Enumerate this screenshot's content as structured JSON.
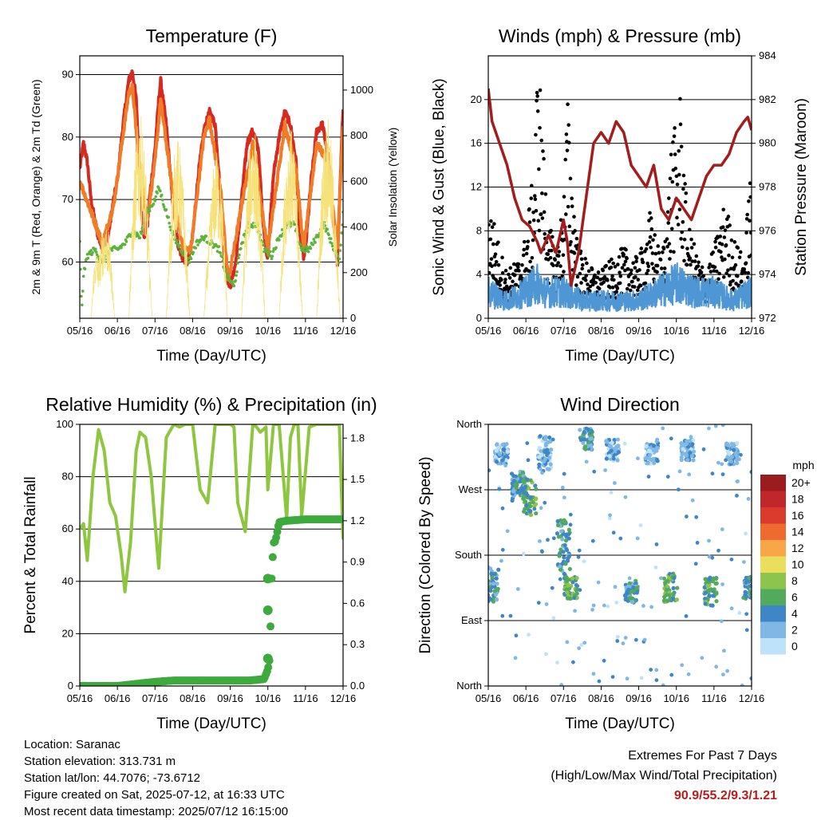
{
  "footer": {
    "location": "Location: Saranac",
    "elevation": "Station elevation: 313.731 m",
    "latlon": "Station lat/lon: 44.7076; -73.6712",
    "created": "Figure created on Sat, 2025-07-12, at 16:33 UTC",
    "latest": "Most recent data timestamp: 2025/07/12 16:15:00",
    "extremes_title": "Extremes For Past 7 Days",
    "extremes_subtitle": "(High/Low/Max Wind/Total Precipitation)",
    "extremes_values": "90.9/55.2/9.3/1.21"
  },
  "colors": {
    "temp2m": "#d42a20",
    "temp9m": "#f07c27",
    "dewpoint": "#5bb33a",
    "solar": "#f6e27a",
    "gust": "#000000",
    "wind": "#4f97d4",
    "pressure": "#a41d1d",
    "rh": "#8ec63f",
    "rain": "#3caa3c"
  },
  "chart_data": [
    {
      "type": "line",
      "title": "Temperature (F)",
      "xlabel": "Time (Day/UTC)",
      "ylabel": "2m & 9m T (Red, Orange) & 2m Td (Green)",
      "ylabel_right": "Solar Insolation (Yellow)",
      "x_ticks": [
        "05/16",
        "06/16",
        "07/16",
        "08/16",
        "09/16",
        "10/16",
        "11/16",
        "12/16"
      ],
      "xlim": [
        0,
        7
      ],
      "ylim": [
        51,
        93
      ],
      "y_ticks": [
        60,
        70,
        80,
        90
      ],
      "ylim_right": [
        0,
        1150
      ],
      "y_ticks_right": [
        0,
        200,
        400,
        600,
        800,
        1000
      ],
      "grid": "horizontal",
      "series": [
        {
          "key": "t2",
          "color_key": "temp2m",
          "axis": "left",
          "style": "line",
          "x": [
            0,
            0.1,
            0.2,
            0.3,
            0.45,
            0.6,
            0.75,
            0.9,
            1.0,
            1.15,
            1.3,
            1.4,
            1.5,
            1.6,
            1.7,
            1.8,
            1.85,
            2.0,
            2.1,
            2.15,
            2.3,
            2.45,
            2.6,
            2.75,
            2.85,
            2.95,
            3.0,
            3.15,
            3.3,
            3.45,
            3.6,
            3.75,
            3.85,
            3.95,
            4.0,
            4.15,
            4.3,
            4.45,
            4.6,
            4.75,
            4.85,
            4.95,
            5.0,
            5.15,
            5.3,
            5.45,
            5.6,
            5.75,
            5.85,
            5.95,
            6.0,
            6.15,
            6.3,
            6.45,
            6.6,
            6.75,
            6.85,
            7.0
          ],
          "values": [
            75,
            79,
            76,
            70,
            65,
            62,
            64,
            70,
            73,
            82,
            89,
            90.5,
            86,
            73,
            64,
            66,
            70,
            78,
            86,
            89,
            82,
            71,
            63,
            60.5,
            60,
            62,
            64,
            74,
            81,
            84,
            82,
            70,
            60,
            57,
            56,
            60,
            70,
            79,
            81,
            78,
            68,
            62,
            61,
            74,
            80,
            84,
            82,
            76,
            64,
            61,
            62,
            73,
            81,
            82,
            77,
            66,
            60,
            85
          ]
        },
        {
          "key": "t9",
          "color_key": "temp9m",
          "axis": "left",
          "style": "line",
          "x": [
            0,
            0.3,
            0.6,
            0.9,
            1.3,
            1.4,
            1.6,
            1.8,
            2.0,
            2.15,
            2.45,
            2.75,
            2.95,
            3.3,
            3.45,
            3.75,
            3.95,
            4.3,
            4.6,
            4.85,
            5.0,
            5.45,
            5.75,
            5.95,
            6.3,
            6.6,
            6.85,
            7.0
          ],
          "values": [
            73,
            68,
            63,
            69,
            87,
            88,
            74,
            67,
            76,
            86,
            72,
            62,
            62,
            80,
            83,
            71,
            57,
            69,
            79,
            68,
            62,
            82,
            75,
            62,
            79,
            76,
            62,
            82
          ]
        },
        {
          "key": "td",
          "color_key": "dewpoint",
          "axis": "left",
          "style": "dots",
          "x": [
            0,
            0.05,
            0.1,
            0.2,
            0.4,
            0.6,
            0.8,
            1.0,
            1.2,
            1.4,
            1.6,
            1.8,
            2.0,
            2.1,
            2.3,
            2.5,
            2.7,
            2.9,
            3.1,
            3.3,
            3.5,
            3.7,
            3.9,
            4.1,
            4.3,
            4.5,
            4.7,
            4.9,
            5.1,
            5.3,
            5.5,
            5.7,
            5.9,
            6.1,
            6.3,
            6.5,
            6.7,
            6.9,
            7.0
          ],
          "values": [
            63,
            52,
            58,
            61,
            62,
            60,
            62,
            62,
            63,
            65,
            64,
            68,
            70,
            72,
            68,
            64,
            62,
            60,
            63,
            64,
            63,
            62,
            58,
            56,
            63,
            66,
            66,
            62,
            61,
            64,
            66,
            66,
            62,
            62,
            64,
            66,
            63,
            60,
            68
          ]
        },
        {
          "key": "solar",
          "color_key": "solar",
          "axis": "right",
          "style": "line",
          "x": [
            0.05,
            0.2,
            0.35,
            0.5,
            0.9,
            1.3,
            1.45,
            1.9,
            2.2,
            2.4,
            2.95,
            3.2,
            3.4,
            3.9,
            4.25,
            4.4,
            4.9,
            5.2,
            5.4,
            5.9,
            6.2,
            6.4,
            6.9
          ],
          "values": [
            900,
            50,
            700,
            300,
            650,
            1000,
            950,
            800,
            1000,
            850,
            700,
            800,
            600,
            900,
            1000,
            850,
            850,
            1000,
            900,
            750,
            950,
            1000,
            700
          ]
        }
      ]
    },
    {
      "type": "scatter",
      "title": "Winds (mph) & Pressure (mb)",
      "xlabel": "Time (Day/UTC)",
      "ylabel": "Sonic Wind & Gust (Blue, Black)",
      "ylabel_right": "Station Pressure (Maroon)",
      "x_ticks": [
        "05/16",
        "06/16",
        "07/16",
        "08/16",
        "09/16",
        "10/16",
        "11/16",
        "12/16"
      ],
      "xlim": [
        0,
        7
      ],
      "ylim": [
        0,
        24
      ],
      "y_ticks": [
        0,
        4,
        8,
        12,
        16,
        20
      ],
      "ylim_right": [
        972,
        984
      ],
      "y_ticks_right": [
        972,
        974,
        976,
        978,
        980,
        982,
        984
      ],
      "grid": "horizontal",
      "series": [
        {
          "key": "gust",
          "color_key": "gust",
          "axis": "left",
          "style": "dots",
          "x": [
            0.1,
            0.3,
            0.5,
            0.8,
            1.0,
            1.1,
            1.2,
            1.3,
            1.35,
            1.45,
            1.6,
            1.8,
            2.0,
            2.1,
            2.2,
            2.4,
            2.6,
            2.8,
            3.0,
            3.3,
            3.6,
            3.9,
            4.1,
            4.3,
            4.6,
            4.8,
            4.9,
            5.0,
            5.1,
            5.3,
            5.6,
            5.8,
            6.0,
            6.3,
            6.5,
            6.8,
            6.95
          ],
          "values": [
            9,
            6,
            4,
            5,
            7,
            10,
            12,
            21,
            22,
            15,
            8,
            6,
            10,
            19,
            13,
            6,
            5,
            4,
            4,
            5,
            6,
            5,
            6,
            9,
            5,
            11,
            17,
            15,
            19,
            8,
            5,
            4,
            6,
            10,
            7,
            5,
            12
          ]
        },
        {
          "key": "wind",
          "color_key": "wind",
          "axis": "left",
          "style": "band",
          "x": [
            0,
            0.5,
            1.0,
            1.3,
            1.5,
            2.0,
            2.5,
            3.0,
            3.5,
            4.0,
            4.5,
            5.0,
            5.5,
            6.0,
            6.5,
            7.0
          ],
          "values": [
            3,
            2,
            3,
            4,
            3,
            3,
            2,
            2,
            2,
            2,
            3,
            4,
            3,
            3,
            2,
            3
          ]
        },
        {
          "key": "press",
          "color_key": "pressure",
          "axis": "right",
          "style": "line",
          "x": [
            0,
            0.1,
            0.3,
            0.5,
            0.7,
            0.9,
            1.1,
            1.3,
            1.4,
            1.6,
            1.8,
            2.0,
            2.1,
            2.2,
            2.4,
            2.6,
            2.8,
            3.0,
            3.2,
            3.4,
            3.6,
            3.8,
            4.0,
            4.2,
            4.4,
            4.6,
            4.8,
            5.0,
            5.2,
            5.4,
            5.6,
            5.8,
            6.0,
            6.2,
            6.4,
            6.6,
            6.8,
            6.9,
            7.0
          ],
          "values": [
            982.5,
            981,
            980,
            979,
            977.5,
            976.5,
            976.2,
            975.5,
            975,
            975.8,
            975,
            976.5,
            975.5,
            973.5,
            975,
            977.5,
            980,
            980.5,
            980,
            981,
            980.5,
            979,
            978.5,
            978,
            979,
            977,
            976.5,
            977.5,
            977,
            976.5,
            977.5,
            978.5,
            979,
            979,
            979.5,
            980.5,
            981,
            981.2,
            980.6
          ]
        }
      ]
    },
    {
      "type": "line",
      "title": "Relative Humidity (%) & Precipitation (in)",
      "xlabel": "Time (Day/UTC)",
      "ylabel": "Percent & Total Rainfall",
      "x_ticks": [
        "05/16",
        "06/16",
        "07/16",
        "08/16",
        "09/16",
        "10/16",
        "11/16",
        "12/16"
      ],
      "xlim": [
        0,
        7
      ],
      "ylim": [
        0,
        100
      ],
      "y_ticks": [
        0,
        20,
        40,
        60,
        80,
        100
      ],
      "ylim_right": [
        0,
        1.9
      ],
      "y_ticks_right": [
        "0.0",
        "0.3",
        "0.6",
        "0.9",
        "1.2",
        "1.5",
        "1.8"
      ],
      "grid": "horizontal",
      "series": [
        {
          "key": "rh",
          "color_key": "rh",
          "axis": "left",
          "style": "line",
          "x": [
            0,
            0.1,
            0.2,
            0.35,
            0.5,
            0.65,
            0.8,
            0.95,
            1.1,
            1.2,
            1.35,
            1.5,
            1.6,
            1.75,
            1.9,
            2.1,
            2.3,
            2.5,
            2.65,
            2.8,
            3.0,
            3.2,
            3.4,
            3.6,
            3.8,
            4.0,
            4.1,
            4.2,
            4.4,
            4.6,
            4.7,
            4.8,
            4.95,
            5.0,
            5.15,
            5.3,
            5.5,
            5.6,
            5.7,
            5.8,
            5.9,
            6.1,
            6.3,
            6.5,
            6.7,
            6.9,
            7.0
          ],
          "values": [
            60,
            62,
            48,
            80,
            98,
            90,
            70,
            65,
            50,
            36,
            55,
            90,
            97,
            95,
            80,
            45,
            95,
            100,
            99,
            100,
            100,
            75,
            70,
            100,
            100,
            100,
            99,
            70,
            59,
            100,
            99,
            97,
            99,
            75,
            100,
            100,
            64,
            95,
            100,
            100,
            65,
            99,
            100,
            100,
            100,
            100,
            56
          ]
        },
        {
          "key": "rain",
          "color_key": "rain",
          "axis": "right",
          "style": "dots",
          "x": [
            0,
            1.0,
            2.0,
            2.5,
            3.0,
            3.5,
            4.0,
            4.5,
            4.9,
            5.0,
            5.05,
            5.08,
            5.1,
            5.15,
            5.2,
            5.3,
            5.5,
            6.0,
            6.5,
            7.0
          ],
          "values": [
            0,
            0,
            0.03,
            0.04,
            0.04,
            0.04,
            0.04,
            0.04,
            0.05,
            0.12,
            0.2,
            0.55,
            0.78,
            1.04,
            1.05,
            1.19,
            1.2,
            1.21,
            1.21,
            1.21
          ]
        }
      ]
    },
    {
      "type": "scatter",
      "title": "Wind Direction",
      "xlabel": "Time (Day/UTC)",
      "ylabel": "Direction (Colored By Speed)",
      "x_ticks": [
        "05/16",
        "06/16",
        "07/16",
        "08/16",
        "09/16",
        "10/16",
        "11/16",
        "12/16"
      ],
      "xlim": [
        0,
        7
      ],
      "ylim": [
        0,
        360
      ],
      "y_tick_labels": [
        "North",
        "East",
        "South",
        "West",
        "North"
      ],
      "y_tick_values": [
        0,
        90,
        180,
        270,
        360
      ],
      "grid": "horizontal",
      "colorbar": {
        "unit": "mph",
        "labels": [
          "20+",
          "18",
          "16",
          "14",
          "12",
          "10",
          "8",
          "6",
          "4",
          "2",
          "0"
        ],
        "colors": [
          "#9b1c1c",
          "#c0262a",
          "#db3b2c",
          "#ef6a2e",
          "#f8a646",
          "#e9df5c",
          "#8cc44d",
          "#52ab5c",
          "#3f86c6",
          "#7fb8e4",
          "#bee3f8"
        ]
      },
      "clusters": [
        {
          "x": 0.1,
          "y": 140,
          "spread": 25,
          "speed": 4
        },
        {
          "x": 0.35,
          "y": 320,
          "spread": 15,
          "speed": 2
        },
        {
          "x": 0.8,
          "y": 275,
          "spread": 20,
          "speed": 4
        },
        {
          "x": 1.1,
          "y": 260,
          "spread": 25,
          "speed": 6
        },
        {
          "x": 1.5,
          "y": 320,
          "spread": 25,
          "speed": 2
        },
        {
          "x": 2.0,
          "y": 190,
          "spread": 40,
          "speed": 4
        },
        {
          "x": 2.2,
          "y": 135,
          "spread": 15,
          "speed": 6
        },
        {
          "x": 2.6,
          "y": 340,
          "spread": 15,
          "speed": 4
        },
        {
          "x": 3.3,
          "y": 325,
          "spread": 15,
          "speed": 2
        },
        {
          "x": 3.8,
          "y": 130,
          "spread": 15,
          "speed": 4
        },
        {
          "x": 4.35,
          "y": 320,
          "spread": 15,
          "speed": 2
        },
        {
          "x": 4.85,
          "y": 135,
          "spread": 20,
          "speed": 6
        },
        {
          "x": 5.3,
          "y": 325,
          "spread": 15,
          "speed": 2
        },
        {
          "x": 5.9,
          "y": 130,
          "spread": 20,
          "speed": 6
        },
        {
          "x": 6.5,
          "y": 320,
          "spread": 15,
          "speed": 2
        },
        {
          "x": 6.95,
          "y": 135,
          "spread": 15,
          "speed": 4
        }
      ]
    }
  ]
}
